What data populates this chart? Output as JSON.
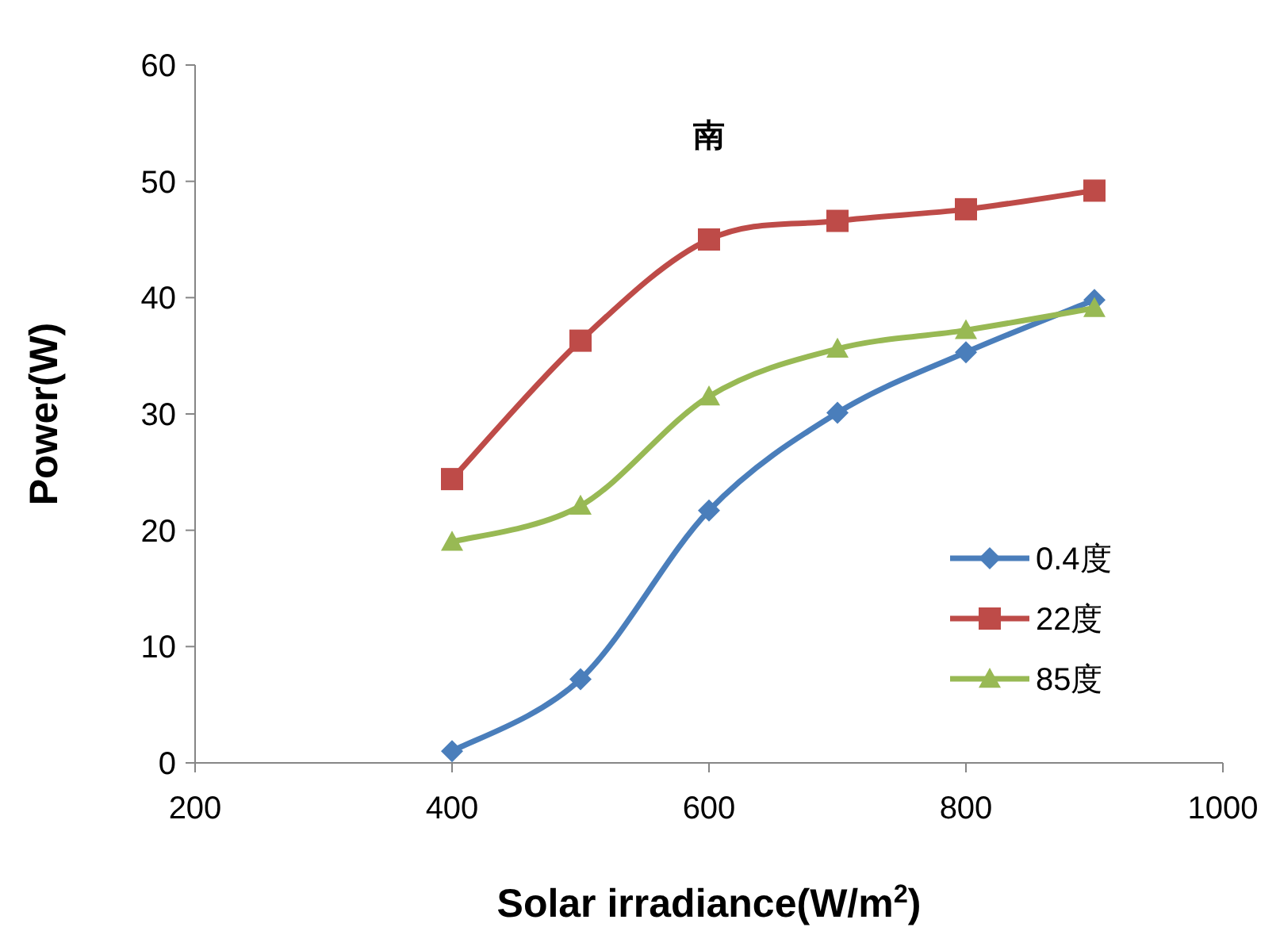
{
  "chart_data": {
    "type": "line",
    "title": "南",
    "xlabel": "Solar irradiance(W/m$^{2}$)",
    "ylabel": "Power(W)",
    "x": [
      400,
      500,
      600,
      700,
      800,
      900
    ],
    "xlim": [
      200,
      1000
    ],
    "xticks": [
      200,
      400,
      600,
      800,
      1000
    ],
    "ylim": [
      0,
      60
    ],
    "yticks": [
      0,
      10,
      20,
      30,
      40,
      50,
      60
    ],
    "grid": false,
    "legend": "bottom right",
    "line_style": "solid",
    "series": [
      {
        "name": "0.4度",
        "color": "#4a7ebb",
        "marker": "diamond",
        "values": [
          1.0,
          7.2,
          21.7,
          30.1,
          35.3,
          39.8
        ]
      },
      {
        "name": "22度",
        "color": "#be4b48",
        "marker": "square",
        "values": [
          24.4,
          36.3,
          45.0,
          46.6,
          47.6,
          49.2
        ]
      },
      {
        "name": "85度",
        "color": "#98b954",
        "marker": "triangle",
        "values": [
          19.0,
          22.1,
          31.5,
          35.6,
          37.2,
          39.1
        ]
      }
    ]
  }
}
